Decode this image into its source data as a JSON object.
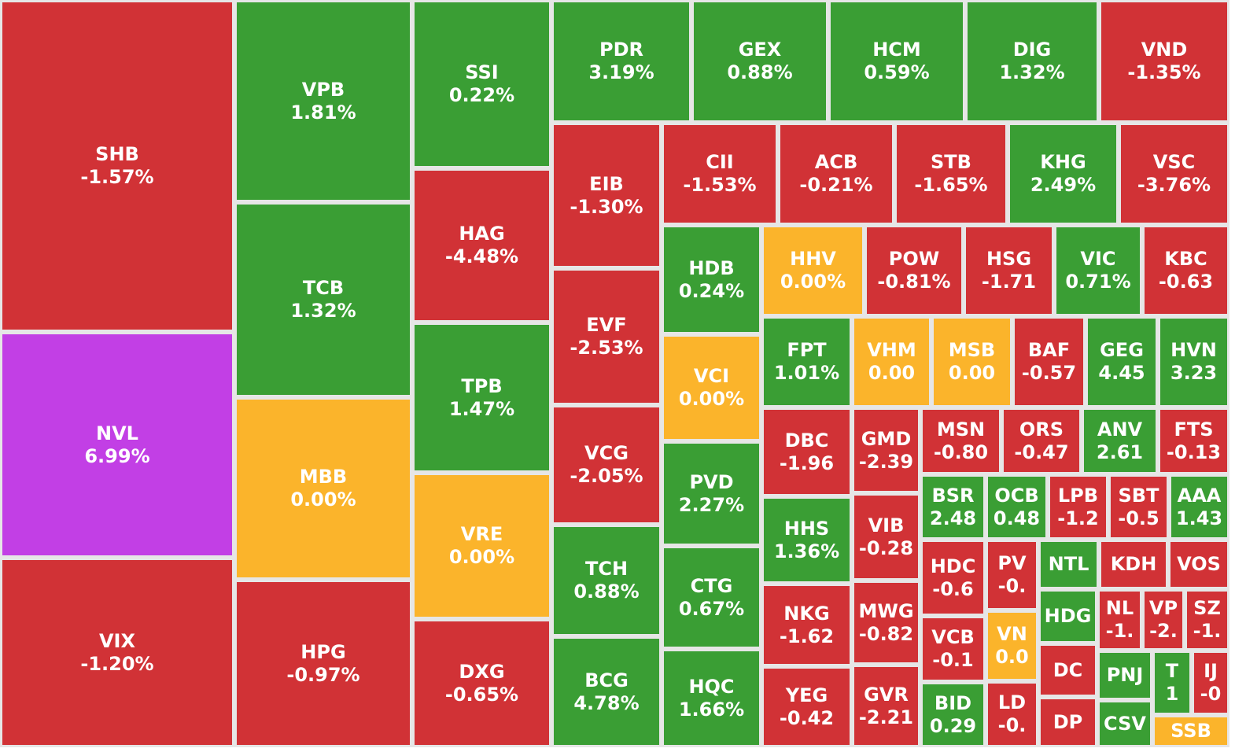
{
  "chart_data": {
    "type": "treemap",
    "colors": {
      "up": "#3a9e34",
      "down": "#d13236",
      "ref": "#fbb42b",
      "ceiling": "#c23fe5"
    },
    "tiles": [
      {
        "ticker": "SHB",
        "change": "-1.57%",
        "status": "down"
      },
      {
        "ticker": "NVL",
        "change": "6.99%",
        "status": "ceiling"
      },
      {
        "ticker": "VIX",
        "change": "-1.20%",
        "status": "down"
      },
      {
        "ticker": "VPB",
        "change": "1.81%",
        "status": "up"
      },
      {
        "ticker": "TCB",
        "change": "1.32%",
        "status": "up"
      },
      {
        "ticker": "MBB",
        "change": "0.00%",
        "status": "ref"
      },
      {
        "ticker": "HPG",
        "change": "-0.97%",
        "status": "down"
      },
      {
        "ticker": "SSI",
        "change": "0.22%",
        "status": "up"
      },
      {
        "ticker": "HAG",
        "change": "-4.48%",
        "status": "down"
      },
      {
        "ticker": "TPB",
        "change": "1.47%",
        "status": "up"
      },
      {
        "ticker": "VRE",
        "change": "0.00%",
        "status": "ref"
      },
      {
        "ticker": "DXG",
        "change": "-0.65%",
        "status": "down"
      },
      {
        "ticker": "PDR",
        "change": "3.19%",
        "status": "up"
      },
      {
        "ticker": "GEX",
        "change": "0.88%",
        "status": "up"
      },
      {
        "ticker": "HCM",
        "change": "0.59%",
        "status": "up"
      },
      {
        "ticker": "DIG",
        "change": "1.32%",
        "status": "up"
      },
      {
        "ticker": "VND",
        "change": "-1.35%",
        "status": "down"
      },
      {
        "ticker": "EIB",
        "change": "-1.30%",
        "status": "down"
      },
      {
        "ticker": "EVF",
        "change": "-2.53%",
        "status": "down"
      },
      {
        "ticker": "VCG",
        "change": "-2.05%",
        "status": "down"
      },
      {
        "ticker": "TCH",
        "change": "0.88%",
        "status": "up"
      },
      {
        "ticker": "BCG",
        "change": "4.78%",
        "status": "up"
      },
      {
        "ticker": "CII",
        "change": "-1.53%",
        "status": "down"
      },
      {
        "ticker": "ACB",
        "change": "-0.21%",
        "status": "down"
      },
      {
        "ticker": "STB",
        "change": "-1.65%",
        "status": "down"
      },
      {
        "ticker": "KHG",
        "change": "2.49%",
        "status": "up"
      },
      {
        "ticker": "VSC",
        "change": "-3.76%",
        "status": "down"
      },
      {
        "ticker": "HDB",
        "change": "0.24%",
        "status": "up"
      },
      {
        "ticker": "VCI",
        "change": "0.00%",
        "status": "ref"
      },
      {
        "ticker": "PVD",
        "change": "2.27%",
        "status": "up"
      },
      {
        "ticker": "CTG",
        "change": "0.67%",
        "status": "up"
      },
      {
        "ticker": "HQC",
        "change": "1.66%",
        "status": "up"
      },
      {
        "ticker": "HHV",
        "change": "0.00%",
        "status": "ref"
      },
      {
        "ticker": "POW",
        "change": "-0.81%",
        "status": "down"
      },
      {
        "ticker": "HSG",
        "change": "-1.71",
        "status": "down"
      },
      {
        "ticker": "VIC",
        "change": "0.71%",
        "status": "up"
      },
      {
        "ticker": "KBC",
        "change": "-0.63",
        "status": "down"
      },
      {
        "ticker": "FPT",
        "change": "1.01%",
        "status": "up"
      },
      {
        "ticker": "VHM",
        "change": "0.00",
        "status": "ref"
      },
      {
        "ticker": "MSB",
        "change": "0.00",
        "status": "ref"
      },
      {
        "ticker": "BAF",
        "change": "-0.57",
        "status": "down"
      },
      {
        "ticker": "GEG",
        "change": "4.45",
        "status": "up"
      },
      {
        "ticker": "HVN",
        "change": "3.23",
        "status": "up"
      },
      {
        "ticker": "DBC",
        "change": "-1.96",
        "status": "down"
      },
      {
        "ticker": "GMD",
        "change": "-2.39",
        "status": "down"
      },
      {
        "ticker": "MSN",
        "change": "-0.80",
        "status": "down"
      },
      {
        "ticker": "ORS",
        "change": "-0.47",
        "status": "down"
      },
      {
        "ticker": "ANV",
        "change": "2.61",
        "status": "up"
      },
      {
        "ticker": "FTS",
        "change": "-0.13",
        "status": "down"
      },
      {
        "ticker": "HHS",
        "change": "1.36%",
        "status": "up"
      },
      {
        "ticker": "VIB",
        "change": "-0.28",
        "status": "down"
      },
      {
        "ticker": "BSR",
        "change": "2.48",
        "status": "up"
      },
      {
        "ticker": "OCB",
        "change": "0.48",
        "status": "up"
      },
      {
        "ticker": "LPB",
        "change": "-1.2",
        "status": "down"
      },
      {
        "ticker": "SBT",
        "change": "-0.5",
        "status": "down"
      },
      {
        "ticker": "AAA",
        "change": "1.43",
        "status": "up"
      },
      {
        "ticker": "NKG",
        "change": "-1.62",
        "status": "down"
      },
      {
        "ticker": "MWG",
        "change": "-0.82",
        "status": "down"
      },
      {
        "ticker": "HDC",
        "change": "-0.6",
        "status": "down"
      },
      {
        "ticker": "PV",
        "change": "-0.",
        "status": "down"
      },
      {
        "ticker": "NTL",
        "change": "",
        "status": "up"
      },
      {
        "ticker": "KDH",
        "change": "",
        "status": "down"
      },
      {
        "ticker": "VOS",
        "change": "",
        "status": "down"
      },
      {
        "ticker": "HDG",
        "change": "",
        "status": "up"
      },
      {
        "ticker": "NL",
        "change": "-1.",
        "status": "down"
      },
      {
        "ticker": "VP",
        "change": "-2.",
        "status": "down"
      },
      {
        "ticker": "SZ",
        "change": "-1.",
        "status": "down"
      },
      {
        "ticker": "YEG",
        "change": "-0.42",
        "status": "down"
      },
      {
        "ticker": "GVR",
        "change": "-2.21",
        "status": "down"
      },
      {
        "ticker": "VCB",
        "change": "-0.1",
        "status": "down"
      },
      {
        "ticker": "VN",
        "change": "0.0",
        "status": "ref"
      },
      {
        "ticker": "DC",
        "change": "",
        "status": "down"
      },
      {
        "ticker": "PNJ",
        "change": "",
        "status": "up"
      },
      {
        "ticker": "T",
        "change": "1",
        "status": "up"
      },
      {
        "ticker": "IJ",
        "change": "-0",
        "status": "down"
      },
      {
        "ticker": "BID",
        "change": "0.29",
        "status": "up"
      },
      {
        "ticker": "LD",
        "change": "-0.",
        "status": "down"
      },
      {
        "ticker": "DP",
        "change": "",
        "status": "down"
      },
      {
        "ticker": "CSV",
        "change": "",
        "status": "up"
      },
      {
        "ticker": "SSB",
        "change": "",
        "status": "ref"
      }
    ]
  }
}
